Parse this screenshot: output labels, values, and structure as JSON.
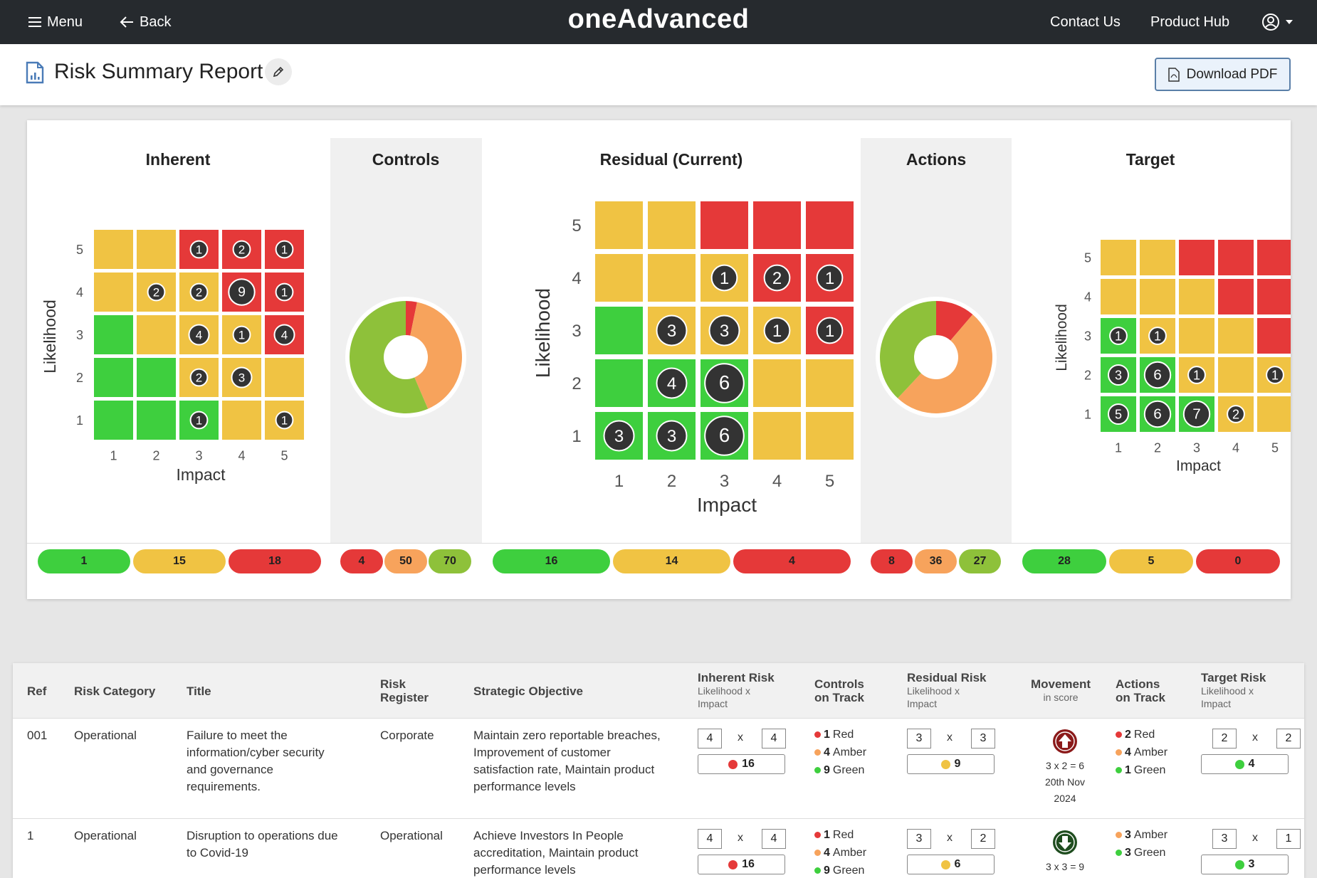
{
  "topbar": {
    "menu_label": "Menu",
    "back_label": "Back",
    "logo": "oneAdvanced",
    "contact_label": "Contact Us",
    "product_hub_label": "Product Hub"
  },
  "page": {
    "title": "Risk Summary Report",
    "download_label": "Download PDF"
  },
  "colors": {
    "green": "#3ecf3e",
    "amber": "#f0c343",
    "red": "#e53939",
    "orange": "#f7a35c",
    "olive": "#8ec13a",
    "marker": "#333333"
  },
  "icons": {
    "menu": "hamburger-icon",
    "back": "arrow-left-icon",
    "user": "user-circle-icon",
    "report": "report-document-icon",
    "edit": "pencil-icon",
    "pdf": "pdf-file-icon",
    "movement_up": "arrow-up-circle-icon",
    "movement_down": "arrow-down-circle-icon"
  },
  "summary": {
    "inherent": {
      "title": "Inherent",
      "ylabel": "Likelihood",
      "xlabel": "Impact",
      "ticks": [
        "1",
        "2",
        "3",
        "4",
        "5"
      ],
      "grid": [
        [
          "a",
          "a",
          "r",
          "r",
          "r"
        ],
        [
          "a",
          "a",
          "a",
          "r",
          "r"
        ],
        [
          "g",
          "a",
          "a",
          "a",
          "r"
        ],
        [
          "g",
          "g",
          "a",
          "a",
          "a"
        ],
        [
          "g",
          "g",
          "g",
          "a",
          "a"
        ]
      ],
      "counts": [
        [
          null,
          null,
          "1",
          "2",
          "1"
        ],
        [
          null,
          "2",
          "2",
          "9",
          "1"
        ],
        [
          null,
          null,
          "4",
          "1",
          "4"
        ],
        [
          null,
          null,
          "2",
          "3",
          null
        ],
        [
          null,
          null,
          "1",
          null,
          "1"
        ]
      ],
      "pills": [
        "1",
        "15",
        "18"
      ]
    },
    "controls": {
      "title": "Controls",
      "donut": [
        {
          "label": "Red",
          "value": 4,
          "color": "#e53939"
        },
        {
          "label": "Amber",
          "value": 50,
          "color": "#f7a35c"
        },
        {
          "label": "Green",
          "value": 70,
          "color": "#8ec13a"
        }
      ],
      "pills": [
        "4",
        "50",
        "70"
      ]
    },
    "residual": {
      "title": "Residual (Current)",
      "ylabel": "Likelihood",
      "xlabel": "Impact",
      "ticks": [
        "1",
        "2",
        "3",
        "4",
        "5"
      ],
      "grid": [
        [
          "a",
          "a",
          "r",
          "r",
          "r"
        ],
        [
          "a",
          "a",
          "a",
          "r",
          "r"
        ],
        [
          "g",
          "a",
          "a",
          "a",
          "r"
        ],
        [
          "g",
          "g",
          "g",
          "a",
          "a"
        ],
        [
          "g",
          "g",
          "g",
          "a",
          "a"
        ]
      ],
      "counts": [
        [
          null,
          null,
          null,
          null,
          null
        ],
        [
          null,
          null,
          "1",
          "2",
          "1"
        ],
        [
          null,
          "3",
          "3",
          "1",
          "1"
        ],
        [
          null,
          "4",
          "6",
          null,
          null
        ],
        [
          "3",
          "3",
          "6",
          null,
          null
        ]
      ],
      "pills": [
        "16",
        "14",
        "4"
      ]
    },
    "actions": {
      "title": "Actions",
      "donut": [
        {
          "label": "Red",
          "value": 8,
          "color": "#e53939"
        },
        {
          "label": "Amber",
          "value": 36,
          "color": "#f7a35c"
        },
        {
          "label": "Green",
          "value": 27,
          "color": "#8ec13a"
        }
      ],
      "pills": [
        "8",
        "36",
        "27"
      ]
    },
    "target": {
      "title": "Target",
      "ylabel": "Likelihood",
      "xlabel": "Impact",
      "ticks": [
        "1",
        "2",
        "3",
        "4",
        "5"
      ],
      "grid": [
        [
          "a",
          "a",
          "r",
          "r",
          "r"
        ],
        [
          "a",
          "a",
          "a",
          "r",
          "r"
        ],
        [
          "g",
          "a",
          "a",
          "a",
          "r"
        ],
        [
          "g",
          "g",
          "a",
          "a",
          "a"
        ],
        [
          "g",
          "g",
          "g",
          "a",
          "a"
        ]
      ],
      "counts": [
        [
          null,
          null,
          null,
          null,
          null
        ],
        [
          null,
          null,
          null,
          null,
          null
        ],
        [
          "1",
          "1",
          null,
          null,
          null
        ],
        [
          "3",
          "6",
          "1",
          null,
          "1"
        ],
        [
          "5",
          "6",
          "7",
          "2",
          null
        ]
      ],
      "pills": [
        "28",
        "5",
        "0"
      ]
    }
  },
  "table": {
    "headers": {
      "ref": "Ref",
      "category": "Risk Category",
      "title": "Title",
      "register": "Risk Register",
      "objective": "Strategic Objective",
      "inherent": "Inherent Risk",
      "inherent_sub": "Likelihood x Impact",
      "controls": "Controls on Track",
      "residual": "Residual Risk",
      "residual_sub": "Likelihood x Impact",
      "movement": "Movement",
      "movement_sub": "in score",
      "actions": "Actions on Track",
      "target": "Target Risk",
      "target_sub": "Likelihood x Impact"
    },
    "x_char": "x",
    "rows": [
      {
        "ref": "001",
        "category": "Operational",
        "title": "Failure to meet the information/cyber security and governance requirements.",
        "register": "Corporate",
        "objective": "Maintain zero reportable breaches, Improvement of customer satisfaction rate, Maintain product performance levels",
        "inherent": {
          "l": "4",
          "i": "4",
          "score": "16",
          "color": "#e53939"
        },
        "controls": [
          {
            "n": "1",
            "label": "Red",
            "color": "#e53939"
          },
          {
            "n": "4",
            "label": "Amber",
            "color": "#f7a35c"
          },
          {
            "n": "9",
            "label": "Green",
            "color": "#3ecf3e"
          }
        ],
        "residual": {
          "l": "3",
          "i": "3",
          "score": "9",
          "color": "#f0c343"
        },
        "movement": {
          "direction": "up",
          "calc": "3 x 2 = 6",
          "date1": "20th Nov",
          "date2": "2024"
        },
        "actions": [
          {
            "n": "2",
            "label": "Red",
            "color": "#e53939"
          },
          {
            "n": "4",
            "label": "Amber",
            "color": "#f7a35c"
          },
          {
            "n": "1",
            "label": "Green",
            "color": "#3ecf3e"
          }
        ],
        "target": {
          "l": "2",
          "i": "2",
          "score": "4",
          "color": "#3ecf3e"
        }
      },
      {
        "ref": "1",
        "category": "Operational",
        "title": "Disruption to operations due to Covid-19",
        "register": "Operational",
        "objective": "Achieve Investors In People accreditation, Maintain product performance levels",
        "inherent": {
          "l": "4",
          "i": "4",
          "score": "16",
          "color": "#e53939"
        },
        "controls": [
          {
            "n": "1",
            "label": "Red",
            "color": "#e53939"
          },
          {
            "n": "4",
            "label": "Amber",
            "color": "#f7a35c"
          },
          {
            "n": "9",
            "label": "Green",
            "color": "#3ecf3e"
          }
        ],
        "residual": {
          "l": "3",
          "i": "2",
          "score": "6",
          "color": "#f0c343"
        },
        "movement": {
          "direction": "down",
          "calc": "3 x 3 = 9"
        },
        "actions": [
          {
            "n": "3",
            "label": "Amber",
            "color": "#f7a35c"
          },
          {
            "n": "3",
            "label": "Green",
            "color": "#3ecf3e"
          }
        ],
        "target": {
          "l": "3",
          "i": "1",
          "score": "3",
          "color": "#3ecf3e"
        }
      }
    ]
  }
}
